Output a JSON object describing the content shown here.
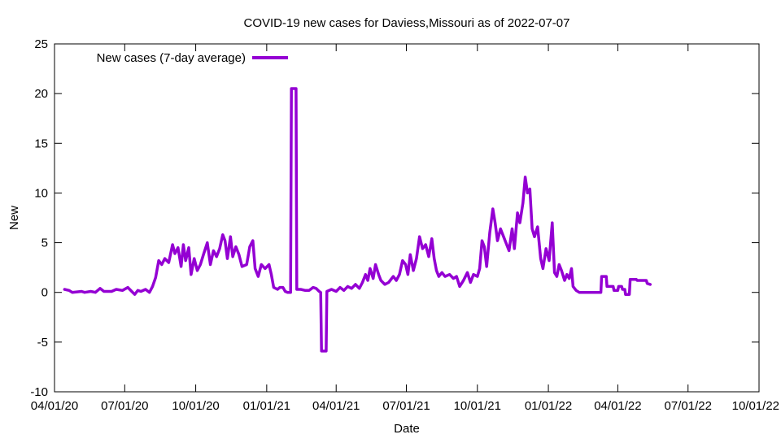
{
  "chart_data": {
    "type": "line",
    "title": "COVID-19 new cases for Daviess,Missouri as of 2022-07-07",
    "xlabel": "Date",
    "ylabel": "New",
    "xlim": [
      "2020-04-01",
      "2022-10-01"
    ],
    "ylim": [
      -10,
      25
    ],
    "x_ticks": [
      "04/01/20",
      "07/01/20",
      "10/01/20",
      "01/01/21",
      "04/01/21",
      "07/01/21",
      "10/01/21",
      "01/01/22",
      "04/01/22",
      "07/01/22",
      "10/01/22"
    ],
    "x_tick_dates": [
      "2020-04-01",
      "2020-07-01",
      "2020-10-01",
      "2021-01-01",
      "2021-04-01",
      "2021-07-01",
      "2021-10-01",
      "2022-01-01",
      "2022-04-01",
      "2022-07-01",
      "2022-10-01"
    ],
    "y_ticks": [
      -10,
      -5,
      0,
      5,
      10,
      15,
      20,
      25
    ],
    "grid": false,
    "legend": "top-left",
    "series": [
      {
        "name": "New cases (7-day average)",
        "color": "#9400d3",
        "points": [
          [
            "2020-04-14",
            0.3
          ],
          [
            "2020-04-20",
            0.2
          ],
          [
            "2020-04-24",
            0.0
          ],
          [
            "2020-05-06",
            0.1
          ],
          [
            "2020-05-10",
            0.0
          ],
          [
            "2020-05-18",
            0.1
          ],
          [
            "2020-05-24",
            0.0
          ],
          [
            "2020-05-30",
            0.4
          ],
          [
            "2020-06-04",
            0.1
          ],
          [
            "2020-06-14",
            0.1
          ],
          [
            "2020-06-20",
            0.3
          ],
          [
            "2020-06-28",
            0.2
          ],
          [
            "2020-07-05",
            0.5
          ],
          [
            "2020-07-10",
            0.1
          ],
          [
            "2020-07-14",
            -0.2
          ],
          [
            "2020-07-18",
            0.2
          ],
          [
            "2020-07-22",
            0.1
          ],
          [
            "2020-07-28",
            0.3
          ],
          [
            "2020-08-02",
            0.0
          ],
          [
            "2020-08-06",
            0.6
          ],
          [
            "2020-08-10",
            1.5
          ],
          [
            "2020-08-14",
            3.2
          ],
          [
            "2020-08-18",
            2.8
          ],
          [
            "2020-08-22",
            3.4
          ],
          [
            "2020-08-27",
            3.0
          ],
          [
            "2020-09-01",
            4.8
          ],
          [
            "2020-09-04",
            3.9
          ],
          [
            "2020-09-08",
            4.5
          ],
          [
            "2020-09-12",
            2.6
          ],
          [
            "2020-09-15",
            4.8
          ],
          [
            "2020-09-18",
            3.2
          ],
          [
            "2020-09-22",
            4.5
          ],
          [
            "2020-09-25",
            1.8
          ],
          [
            "2020-09-29",
            3.4
          ],
          [
            "2020-10-03",
            2.2
          ],
          [
            "2020-10-07",
            2.8
          ],
          [
            "2020-10-11",
            3.8
          ],
          [
            "2020-10-16",
            5.0
          ],
          [
            "2020-10-20",
            2.8
          ],
          [
            "2020-10-24",
            4.2
          ],
          [
            "2020-10-28",
            3.6
          ],
          [
            "2020-11-01",
            4.4
          ],
          [
            "2020-11-05",
            5.8
          ],
          [
            "2020-11-08",
            5.2
          ],
          [
            "2020-11-11",
            3.4
          ],
          [
            "2020-11-15",
            5.6
          ],
          [
            "2020-11-18",
            3.6
          ],
          [
            "2020-11-22",
            4.6
          ],
          [
            "2020-11-26",
            3.8
          ],
          [
            "2020-11-30",
            2.6
          ],
          [
            "2020-12-06",
            2.8
          ],
          [
            "2020-12-10",
            4.6
          ],
          [
            "2020-12-14",
            5.2
          ],
          [
            "2020-12-17",
            2.4
          ],
          [
            "2020-12-21",
            1.6
          ],
          [
            "2020-12-25",
            2.8
          ],
          [
            "2020-12-30",
            2.4
          ],
          [
            "2021-01-04",
            2.8
          ],
          [
            "2021-01-07",
            1.8
          ],
          [
            "2021-01-10",
            0.5
          ],
          [
            "2021-01-15",
            0.3
          ],
          [
            "2021-01-18",
            0.5
          ],
          [
            "2021-01-22",
            0.5
          ],
          [
            "2021-01-25",
            0.1
          ],
          [
            "2021-01-28",
            0.0
          ],
          [
            "2021-02-01",
            0.0
          ],
          [
            "2021-02-02",
            20.5
          ],
          [
            "2021-02-08",
            20.5
          ],
          [
            "2021-02-09",
            0.3
          ],
          [
            "2021-02-14",
            0.3
          ],
          [
            "2021-02-20",
            0.2
          ],
          [
            "2021-02-25",
            0.2
          ],
          [
            "2021-03-02",
            0.5
          ],
          [
            "2021-03-06",
            0.4
          ],
          [
            "2021-03-10",
            0.1
          ],
          [
            "2021-03-12",
            0.0
          ],
          [
            "2021-03-13",
            -5.9
          ],
          [
            "2021-03-19",
            -5.9
          ],
          [
            "2021-03-20",
            0.1
          ],
          [
            "2021-03-26",
            0.3
          ],
          [
            "2021-04-01",
            0.1
          ],
          [
            "2021-04-06",
            0.5
          ],
          [
            "2021-04-11",
            0.2
          ],
          [
            "2021-04-16",
            0.6
          ],
          [
            "2021-04-21",
            0.4
          ],
          [
            "2021-04-26",
            0.8
          ],
          [
            "2021-05-01",
            0.4
          ],
          [
            "2021-05-05",
            1.0
          ],
          [
            "2021-05-09",
            1.8
          ],
          [
            "2021-05-12",
            1.2
          ],
          [
            "2021-05-15",
            2.4
          ],
          [
            "2021-05-19",
            1.4
          ],
          [
            "2021-05-22",
            2.8
          ],
          [
            "2021-05-26",
            1.8
          ],
          [
            "2021-05-29",
            1.2
          ],
          [
            "2021-06-03",
            0.8
          ],
          [
            "2021-06-08",
            1.0
          ],
          [
            "2021-06-14",
            1.6
          ],
          [
            "2021-06-18",
            1.2
          ],
          [
            "2021-06-22",
            1.8
          ],
          [
            "2021-06-26",
            3.2
          ],
          [
            "2021-06-30",
            2.8
          ],
          [
            "2021-07-03",
            1.8
          ],
          [
            "2021-07-06",
            3.8
          ],
          [
            "2021-07-10",
            2.2
          ],
          [
            "2021-07-14",
            3.4
          ],
          [
            "2021-07-18",
            5.6
          ],
          [
            "2021-07-22",
            4.4
          ],
          [
            "2021-07-26",
            4.8
          ],
          [
            "2021-07-30",
            3.6
          ],
          [
            "2021-08-03",
            5.4
          ],
          [
            "2021-08-06",
            3.4
          ],
          [
            "2021-08-09",
            2.2
          ],
          [
            "2021-08-12",
            1.6
          ],
          [
            "2021-08-16",
            2.0
          ],
          [
            "2021-08-20",
            1.6
          ],
          [
            "2021-08-26",
            1.8
          ],
          [
            "2021-08-31",
            1.4
          ],
          [
            "2021-09-04",
            1.6
          ],
          [
            "2021-09-08",
            0.6
          ],
          [
            "2021-09-13",
            1.2
          ],
          [
            "2021-09-18",
            2.0
          ],
          [
            "2021-09-22",
            1.0
          ],
          [
            "2021-09-26",
            1.8
          ],
          [
            "2021-10-01",
            1.6
          ],
          [
            "2021-10-04",
            2.4
          ],
          [
            "2021-10-07",
            5.2
          ],
          [
            "2021-10-10",
            4.6
          ],
          [
            "2021-10-13",
            2.6
          ],
          [
            "2021-10-17",
            6.0
          ],
          [
            "2021-10-21",
            8.4
          ],
          [
            "2021-10-24",
            7.0
          ],
          [
            "2021-10-27",
            5.2
          ],
          [
            "2021-10-31",
            6.4
          ],
          [
            "2021-11-04",
            5.6
          ],
          [
            "2021-11-07",
            5.0
          ],
          [
            "2021-11-11",
            4.2
          ],
          [
            "2021-11-15",
            6.4
          ],
          [
            "2021-11-18",
            4.4
          ],
          [
            "2021-11-22",
            8.0
          ],
          [
            "2021-11-25",
            7.0
          ],
          [
            "2021-11-29",
            9.0
          ],
          [
            "2021-12-02",
            11.6
          ],
          [
            "2021-12-05",
            10.0
          ],
          [
            "2021-12-08",
            10.4
          ],
          [
            "2021-12-11",
            6.4
          ],
          [
            "2021-12-14",
            5.6
          ],
          [
            "2021-12-18",
            6.6
          ],
          [
            "2021-12-22",
            3.4
          ],
          [
            "2021-12-25",
            2.4
          ],
          [
            "2021-12-29",
            4.4
          ],
          [
            "2022-01-02",
            3.2
          ],
          [
            "2022-01-06",
            7.0
          ],
          [
            "2022-01-09",
            2.0
          ],
          [
            "2022-01-12",
            1.6
          ],
          [
            "2022-01-15",
            2.8
          ],
          [
            "2022-01-18",
            2.2
          ],
          [
            "2022-01-22",
            1.2
          ],
          [
            "2022-01-25",
            1.8
          ],
          [
            "2022-01-28",
            1.4
          ],
          [
            "2022-01-31",
            2.4
          ],
          [
            "2022-02-02",
            0.6
          ],
          [
            "2022-02-06",
            0.2
          ],
          [
            "2022-02-10",
            0.0
          ],
          [
            "2022-03-01",
            0.0
          ],
          [
            "2022-03-10",
            0.0
          ],
          [
            "2022-03-11",
            1.6
          ],
          [
            "2022-03-17",
            1.6
          ],
          [
            "2022-03-18",
            0.6
          ],
          [
            "2022-03-26",
            0.6
          ],
          [
            "2022-03-27",
            0.2
          ],
          [
            "2022-04-01",
            0.2
          ],
          [
            "2022-04-02",
            0.6
          ],
          [
            "2022-04-06",
            0.6
          ],
          [
            "2022-04-07",
            0.3
          ],
          [
            "2022-04-10",
            0.3
          ],
          [
            "2022-04-11",
            -0.2
          ],
          [
            "2022-04-16",
            -0.2
          ],
          [
            "2022-04-17",
            1.3
          ],
          [
            "2022-04-25",
            1.3
          ],
          [
            "2022-04-26",
            1.2
          ],
          [
            "2022-05-01",
            1.2
          ],
          [
            "2022-05-02",
            1.2
          ],
          [
            "2022-05-08",
            1.2
          ],
          [
            "2022-05-09",
            0.9
          ],
          [
            "2022-05-13",
            0.8
          ]
        ]
      }
    ]
  }
}
